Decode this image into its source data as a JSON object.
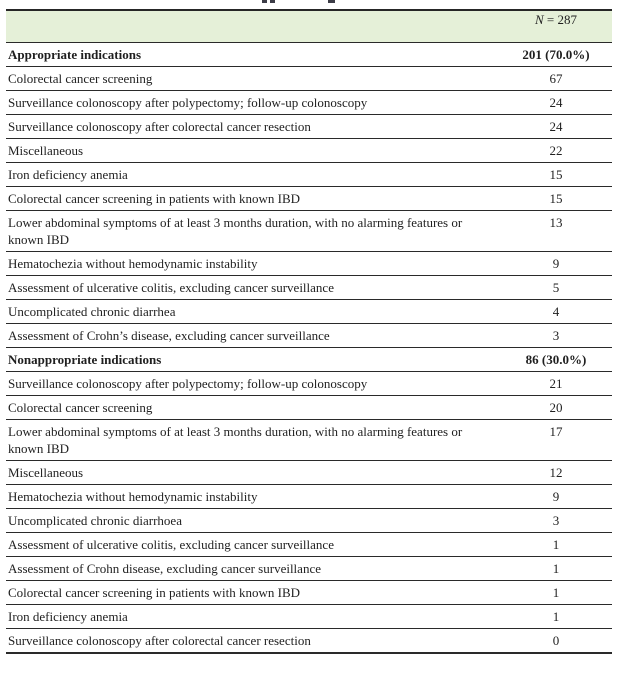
{
  "table": {
    "header": {
      "n_symbol": "N",
      "n_rest": " = 287",
      "band_color": "#e5f0d8"
    },
    "colors": {
      "rule": "#262626",
      "text": "#1f1f1f"
    },
    "sections": [
      {
        "title": "Appropriate indications",
        "total": "201 (70.0%)",
        "rows": [
          {
            "label": "Colorectal cancer screening",
            "value": "67"
          },
          {
            "label": "Surveillance colonoscopy after polypectomy; follow-up colonoscopy",
            "value": "24"
          },
          {
            "label": "Surveillance colonoscopy after colorectal cancer resection",
            "value": "24"
          },
          {
            "label": "Miscellaneous",
            "value": "22"
          },
          {
            "label": "Iron deficiency anemia",
            "value": "15"
          },
          {
            "label": "Colorectal cancer screening in patients with known IBD",
            "value": "15"
          },
          {
            "label": "Lower abdominal symptoms of at least 3 months duration, with no alarming features or known IBD",
            "value": "13"
          },
          {
            "label": "Hematochezia without hemodynamic instability",
            "value": "9"
          },
          {
            "label": "Assessment of ulcerative colitis, excluding cancer surveillance",
            "value": "5"
          },
          {
            "label": "Uncomplicated chronic diarrhea",
            "value": "4"
          },
          {
            "label": "Assessment of Crohn’s disease, excluding cancer surveillance",
            "value": "3"
          }
        ]
      },
      {
        "title": "Nonappropriate indications",
        "total": "86 (30.0%)",
        "rows": [
          {
            "label": "Surveillance colonoscopy after polypectomy; follow-up colonoscopy",
            "value": "21"
          },
          {
            "label": "Colorectal cancer screening",
            "value": "20"
          },
          {
            "label": "Lower abdominal symptoms of at least 3 months duration, with no alarming features or known IBD",
            "value": "17"
          },
          {
            "label": "Miscellaneous",
            "value": "12"
          },
          {
            "label": "Hematochezia without hemodynamic instability",
            "value": "9"
          },
          {
            "label": "Uncomplicated chronic diarrhoea",
            "value": "3"
          },
          {
            "label": "Assessment of ulcerative colitis, excluding cancer surveillance",
            "value": "1"
          },
          {
            "label": "Assessment of Crohn disease, excluding cancer surveillance",
            "value": "1"
          },
          {
            "label": "Colorectal cancer screening in patients with known IBD",
            "value": "1"
          },
          {
            "label": "Iron deficiency anemia",
            "value": "1"
          },
          {
            "label": "Surveillance colonoscopy after colorectal cancer resection",
            "value": "0"
          }
        ]
      }
    ]
  }
}
